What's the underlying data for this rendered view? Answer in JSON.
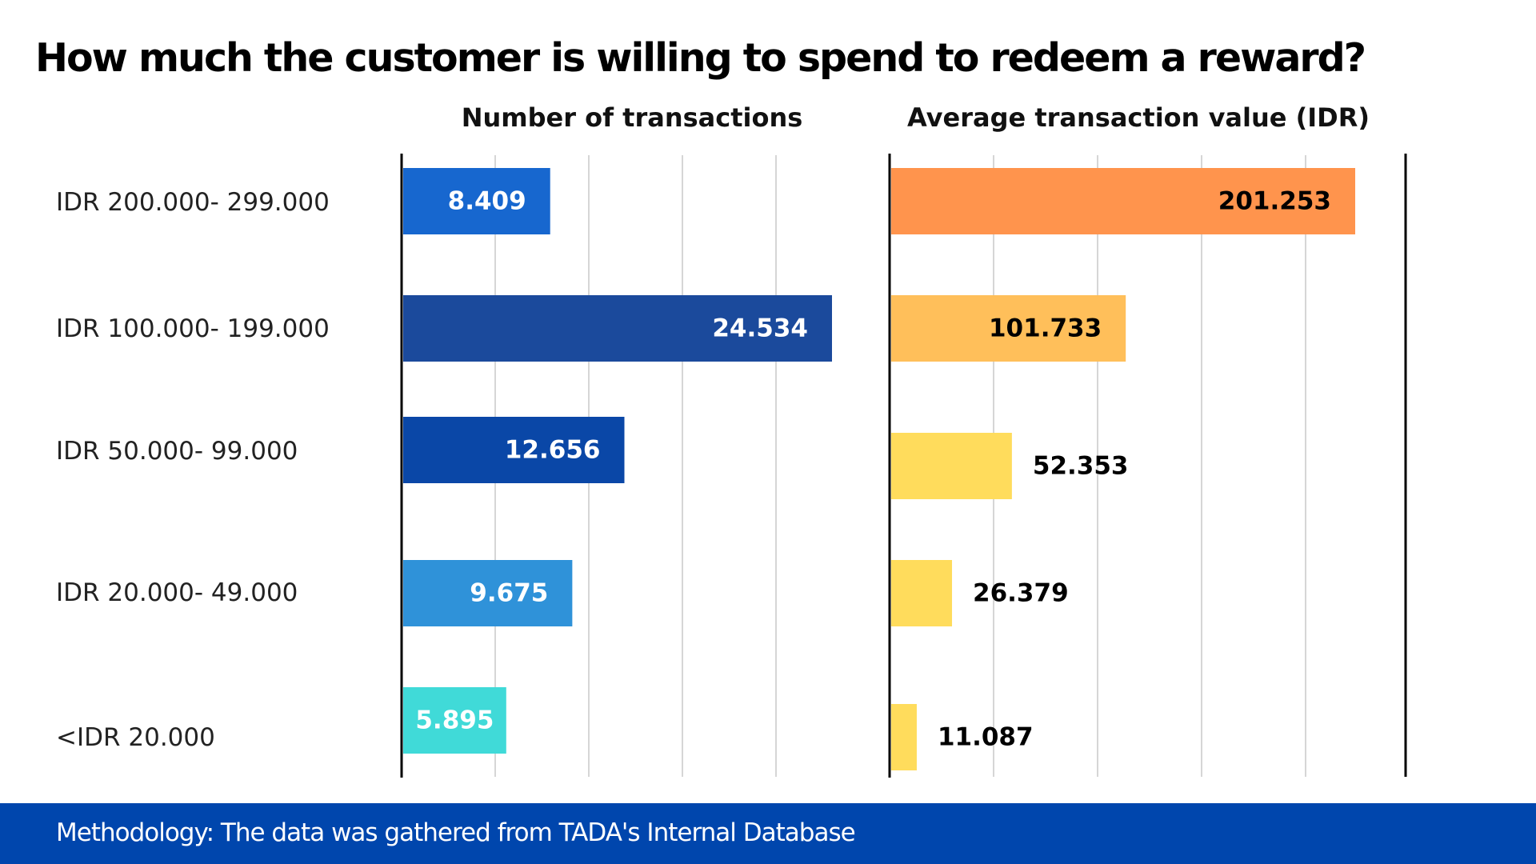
{
  "title": "How much the customer is willing to spend to redeem a reward?",
  "footer": {
    "text": "Methodology: The data was gathered from TADA's Internal Database",
    "background": "#0046ad"
  },
  "chart_data": [
    {
      "type": "bar",
      "orientation": "horizontal",
      "title": "Number of transactions",
      "categories": [
        "IDR 200.000- 299.000",
        "IDR 100.000- 199.000",
        "IDR 50.000- 99.000",
        "IDR 20.000- 49.000",
        "<IDR 20.000"
      ],
      "values": [
        8409,
        24534,
        12656,
        9675,
        5895
      ],
      "value_labels": [
        "8.409",
        "24.534",
        "12.656",
        "9.675",
        "5.895"
      ],
      "colors": [
        "#1767cf",
        "#1b4a9c",
        "#0a47a7",
        "#2f92d9",
        "#40dad8"
      ],
      "label_color": "#ffffff",
      "xlim": [
        0,
        30000
      ],
      "grid": true
    },
    {
      "type": "bar",
      "orientation": "horizontal",
      "title": "Average transaction value (IDR)",
      "categories": [
        "IDR 200.000- 299.000",
        "IDR 100.000- 199.000",
        "IDR 50.000- 99.000",
        "IDR 20.000- 49.000",
        "<IDR 20.000"
      ],
      "values": [
        201253,
        101733,
        52353,
        26379,
        11087
      ],
      "value_labels": [
        "201.253",
        "101.733",
        "52.353",
        "26.379",
        "11.087"
      ],
      "colors": [
        "#ff944d",
        "#ffbf5a",
        "#ffdc5c",
        "#ffdc5c",
        "#ffdc5c"
      ],
      "label_color": "#000000",
      "xlim": [
        0,
        225000
      ],
      "grid": true
    }
  ]
}
